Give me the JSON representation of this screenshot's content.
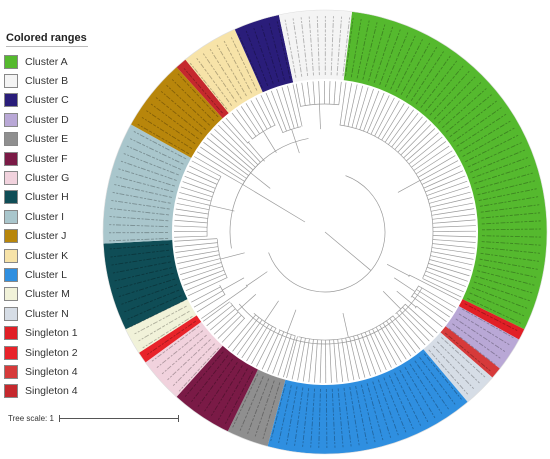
{
  "legend": {
    "title": "Colored ranges",
    "items": [
      {
        "label": "Cluster A",
        "color": "#55b92e"
      },
      {
        "label": "Cluster B",
        "color": "#f4f4f4"
      },
      {
        "label": "Cluster C",
        "color": "#2a1d7a"
      },
      {
        "label": "Cluster D",
        "color": "#b9a8d6"
      },
      {
        "label": "Cluster E",
        "color": "#8f8f8f"
      },
      {
        "label": "Cluster F",
        "color": "#7a1a46"
      },
      {
        "label": "Cluster G",
        "color": "#f1d2dd"
      },
      {
        "label": "Cluster H",
        "color": "#0f4d56"
      },
      {
        "label": "Cluster I",
        "color": "#a9c6cc"
      },
      {
        "label": "Cluster J",
        "color": "#b8860b"
      },
      {
        "label": "Cluster K",
        "color": "#f7e3a8"
      },
      {
        "label": "Cluster L",
        "color": "#2f8fe0"
      },
      {
        "label": "Cluster M",
        "color": "#f1f2d9"
      },
      {
        "label": "Cluster N",
        "color": "#d6dde6"
      },
      {
        "label": "Singleton 1",
        "color": "#e11f26"
      },
      {
        "label": "Singleton 2",
        "color": "#e8232a"
      },
      {
        "label": "Singleton 4",
        "color": "#d63a3a"
      },
      {
        "label": "Singleton 4",
        "color": "#c5282d"
      }
    ]
  },
  "scale": {
    "label": "Tree scale: 1"
  },
  "ring": {
    "sectors": [
      {
        "cluster": "Cluster A",
        "color": "#55b92e",
        "start": 7,
        "end": 116
      },
      {
        "cluster": "Singleton",
        "color": "#e11f26",
        "start": 116,
        "end": 119
      },
      {
        "cluster": "Cluster D",
        "color": "#b9a8d6",
        "start": 119,
        "end": 128
      },
      {
        "cluster": "Singleton",
        "color": "#d63a3a",
        "start": 128,
        "end": 131
      },
      {
        "cluster": "Cluster N",
        "color": "#d6dde6",
        "start": 131,
        "end": 140
      },
      {
        "cluster": "Cluster L",
        "color": "#2f8fe0",
        "start": 140,
        "end": 195
      },
      {
        "cluster": "Cluster E",
        "color": "#8f8f8f",
        "start": 195,
        "end": 206
      },
      {
        "cluster": "Cluster F",
        "color": "#7a1a46",
        "start": 206,
        "end": 222
      },
      {
        "cluster": "Cluster G",
        "color": "#f1d2dd",
        "start": 222,
        "end": 234
      },
      {
        "cluster": "Singleton",
        "color": "#e8232a",
        "start": 234,
        "end": 237
      },
      {
        "cluster": "Cluster M",
        "color": "#f1f2d9",
        "start": 237,
        "end": 244
      },
      {
        "cluster": "Cluster H",
        "color": "#0f4d56",
        "start": 244,
        "end": 267
      },
      {
        "cluster": "Cluster I",
        "color": "#a9c6cc",
        "start": 267,
        "end": 299
      },
      {
        "cluster": "Cluster J",
        "color": "#b8860b",
        "start": 299,
        "end": 318
      },
      {
        "cluster": "Singleton",
        "color": "#c5282d",
        "start": 318,
        "end": 321
      },
      {
        "cluster": "Cluster K",
        "color": "#f7e3a8",
        "start": 321,
        "end": 336
      },
      {
        "cluster": "Cluster C",
        "color": "#2a1d7a",
        "start": 336,
        "end": 348
      },
      {
        "cluster": "Cluster B",
        "color": "#f4f4f4",
        "start": 348,
        "end": 367
      }
    ]
  }
}
